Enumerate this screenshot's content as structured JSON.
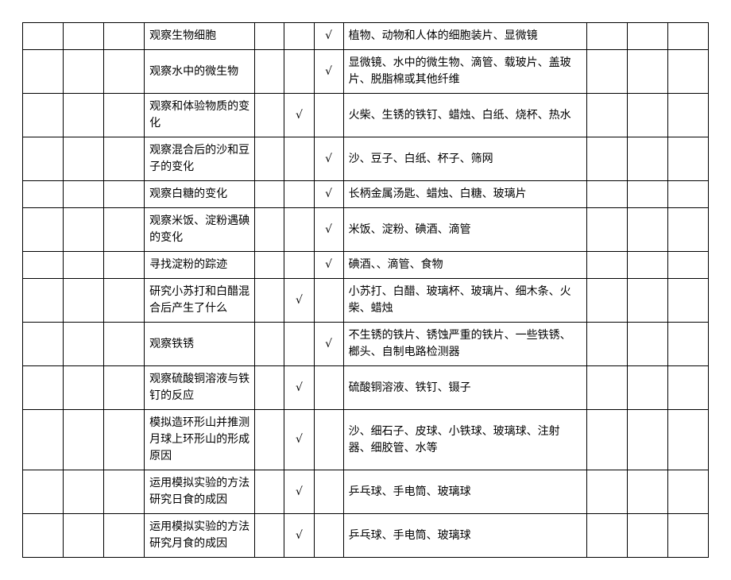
{
  "columns": {
    "widths_pct": [
      5,
      5,
      5,
      15,
      5,
      5,
      5,
      30,
      5,
      5,
      5
    ],
    "check_mark": "√"
  },
  "rows": [
    {
      "col3": "观察生物细胞",
      "check_col": 6,
      "col7": "植物、动物和人体的细胞装片、显微镜"
    },
    {
      "col3": "观察水中的微生物",
      "check_col": 6,
      "col7": "显微镜、水中的微生物、滴管、载玻片、盖玻片、脱脂棉或其他纤维"
    },
    {
      "col3": "观察和体验物质的变化",
      "check_col": 5,
      "col7": "火柴、生锈的铁钉、蜡烛、白纸、烧杯、热水"
    },
    {
      "col3": "观察混合后的沙和豆子的变化",
      "check_col": 6,
      "col7": "沙、豆子、白纸、杯子、筛网"
    },
    {
      "col3": "观察白糖的变化",
      "check_col": 6,
      "col7": "长柄金属汤匙、蜡烛、白糖、玻璃片"
    },
    {
      "col3": "观察米饭、淀粉遇碘的变化",
      "check_col": 6,
      "col7": "米饭、淀粉、碘酒、滴管"
    },
    {
      "col3": "寻找淀粉的踪迹",
      "check_col": 6,
      "col7": "碘酒、、滴管、食物"
    },
    {
      "col3": "研究小苏打和白醋混合后产生了什么",
      "check_col": 5,
      "col7": "小苏打、白醋、玻璃杯、玻璃片、细木条、火柴、蜡烛"
    },
    {
      "col3": "观察铁锈",
      "check_col": 6,
      "col7": "不生锈的铁片、锈蚀严重的铁片、一些铁锈、榔头、自制电路检测器"
    },
    {
      "col3": "观察硫酸铜溶液与铁钉的反应",
      "check_col": 5,
      "col7": "硫酸铜溶液、铁钉、镊子"
    },
    {
      "col3": "模拟造环形山并推测月球上环形山的形成原因",
      "check_col": 5,
      "col7": "沙、细石子、皮球、小铁球、玻璃球、注射器、细胶管、水等"
    },
    {
      "col3": "运用模拟实验的方法研究日食的成因",
      "check_col": 5,
      "col7": "乒乓球、手电筒、玻璃球"
    },
    {
      "col3": "运用模拟实验的方法研究月食的成因",
      "check_col": 5,
      "col7": "乒乓球、手电筒、玻璃球"
    }
  ]
}
